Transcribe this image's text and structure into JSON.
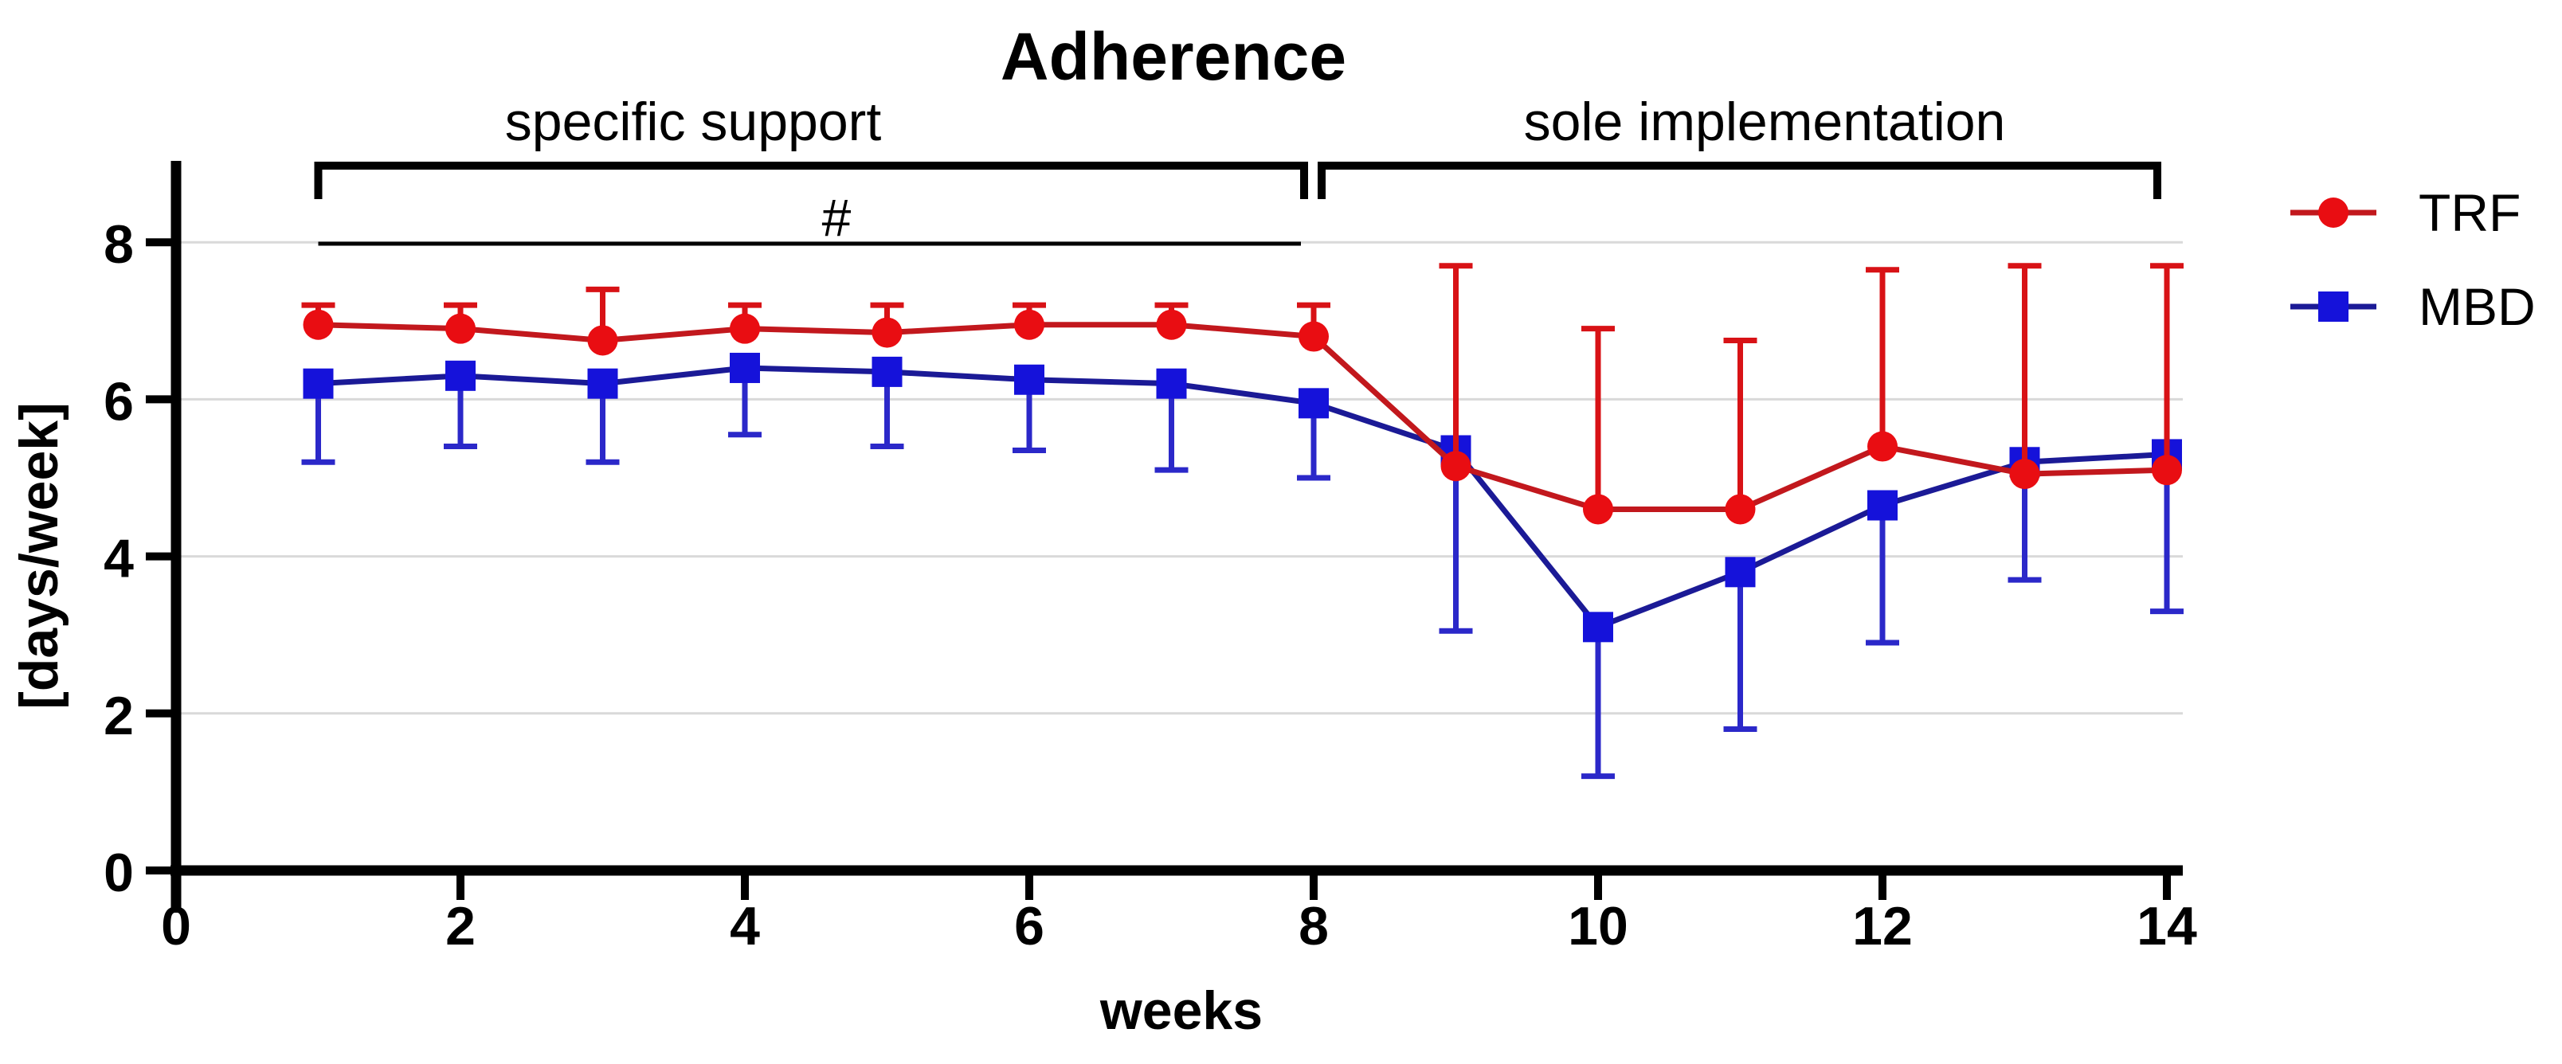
{
  "title": "Adherence",
  "chart_data": {
    "type": "line",
    "title": "Adherence",
    "xlabel": "weeks",
    "ylabel": "[days/week]",
    "xlim": [
      0,
      14.2
    ],
    "ylim": [
      0,
      9
    ],
    "xticks": [
      0,
      2,
      4,
      6,
      8,
      10,
      12,
      14
    ],
    "yticks": [
      0,
      2,
      4,
      6,
      8
    ],
    "grid": "horizontal",
    "legend_position": "right-outside",
    "x": [
      1,
      2,
      3,
      4,
      5,
      6,
      7,
      8,
      9,
      10,
      11,
      12,
      13,
      14
    ],
    "series": [
      {
        "name": "TRF",
        "marker": "circle",
        "color": "#e90d12",
        "line_color": "#c2181d",
        "error_color": "#d81216",
        "error_direction": "up",
        "values": [
          6.95,
          6.9,
          6.75,
          6.9,
          6.85,
          6.95,
          6.95,
          6.8,
          5.15,
          4.6,
          4.6,
          5.4,
          5.05,
          5.1
        ],
        "errors": [
          0.25,
          0.3,
          0.65,
          0.3,
          0.35,
          0.25,
          0.25,
          0.4,
          2.55,
          2.3,
          2.15,
          2.25,
          2.65,
          2.6
        ]
      },
      {
        "name": "MBD",
        "marker": "square",
        "color": "#1512da",
        "line_color": "#1b1a96",
        "error_color": "#2b28c9",
        "error_direction": "down",
        "values": [
          6.2,
          6.3,
          6.2,
          6.4,
          6.35,
          6.25,
          6.2,
          5.95,
          5.35,
          3.1,
          3.8,
          4.65,
          5.2,
          5.3
        ],
        "errors": [
          1.0,
          0.9,
          1.0,
          0.85,
          0.95,
          0.9,
          1.1,
          0.95,
          2.3,
          1.9,
          2.0,
          1.75,
          1.5,
          2.0
        ]
      }
    ],
    "annotations": {
      "phases": [
        {
          "label": "specific support",
          "week_start": 1,
          "week_end": 8
        },
        {
          "label": "sole implementation",
          "week_start": 8,
          "week_end": 14
        }
      ],
      "significance": {
        "symbol": "#",
        "week_start": 1,
        "week_end": 8
      }
    },
    "colors": {
      "grid": "#d9d9d9",
      "axis": "#000000",
      "text": "#000000",
      "background": "#ffffff"
    }
  }
}
